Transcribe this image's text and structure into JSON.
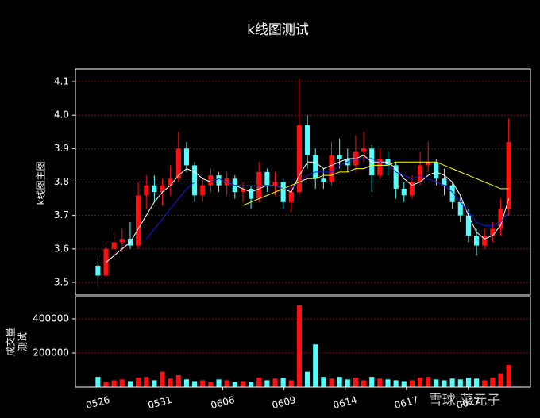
{
  "chart_data": [
    {
      "type": "candlestick",
      "title": "k线图测试",
      "ylabel": "k线图主图",
      "x": [
        0,
        1,
        2,
        3,
        4,
        5,
        6,
        7,
        8,
        9,
        10,
        11,
        12,
        13,
        14,
        15,
        16,
        17,
        18,
        19,
        20,
        21,
        22,
        23,
        24,
        25,
        26,
        27,
        28,
        29,
        30,
        31,
        32,
        33,
        34,
        35,
        36,
        37,
        38,
        39,
        40,
        41,
        42,
        43,
        44,
        45,
        46,
        47,
        48,
        49,
        50,
        51
      ],
      "open": [
        3.55,
        3.52,
        3.6,
        3.62,
        3.63,
        3.61,
        3.76,
        3.79,
        3.77,
        3.79,
        3.81,
        3.9,
        3.85,
        3.76,
        3.79,
        3.82,
        3.79,
        3.81,
        3.77,
        3.78,
        3.75,
        3.83,
        3.79,
        3.8,
        3.74,
        3.77,
        3.97,
        3.88,
        3.81,
        3.8,
        3.88,
        3.87,
        3.85,
        3.89,
        3.9,
        3.82,
        3.87,
        3.85,
        3.78,
        3.76,
        3.8,
        3.85,
        3.86,
        3.81,
        3.79,
        3.74,
        3.7,
        3.64,
        3.61,
        3.64,
        3.66,
        3.72
      ],
      "high": [
        3.58,
        3.62,
        3.65,
        3.66,
        3.68,
        3.8,
        3.82,
        3.82,
        3.81,
        3.85,
        3.95,
        3.92,
        3.86,
        3.81,
        3.84,
        3.83,
        3.83,
        3.82,
        3.8,
        3.79,
        3.86,
        3.84,
        3.83,
        3.81,
        3.79,
        4.11,
        4.0,
        3.9,
        3.84,
        3.92,
        3.93,
        3.9,
        3.94,
        3.95,
        3.91,
        3.9,
        3.89,
        3.86,
        3.8,
        3.82,
        3.89,
        3.92,
        3.87,
        3.84,
        3.8,
        3.76,
        3.72,
        3.66,
        3.66,
        3.68,
        3.75,
        3.99
      ],
      "low": [
        3.49,
        3.51,
        3.58,
        3.59,
        3.6,
        3.6,
        3.72,
        3.74,
        3.73,
        3.76,
        3.8,
        3.83,
        3.74,
        3.74,
        3.77,
        3.77,
        3.76,
        3.75,
        3.74,
        3.72,
        3.74,
        3.77,
        3.76,
        3.72,
        3.71,
        3.76,
        3.84,
        3.78,
        3.78,
        3.79,
        3.84,
        3.83,
        3.83,
        3.86,
        3.77,
        3.81,
        3.82,
        3.75,
        3.74,
        3.75,
        3.79,
        3.83,
        3.79,
        3.76,
        3.72,
        3.68,
        3.62,
        3.58,
        3.6,
        3.62,
        3.64,
        3.7
      ],
      "close": [
        3.52,
        3.6,
        3.62,
        3.63,
        3.61,
        3.76,
        3.79,
        3.77,
        3.79,
        3.81,
        3.9,
        3.85,
        3.76,
        3.79,
        3.82,
        3.79,
        3.81,
        3.77,
        3.78,
        3.75,
        3.83,
        3.79,
        3.8,
        3.74,
        3.77,
        3.97,
        3.88,
        3.81,
        3.8,
        3.88,
        3.87,
        3.85,
        3.89,
        3.9,
        3.82,
        3.87,
        3.85,
        3.78,
        3.76,
        3.8,
        3.85,
        3.86,
        3.81,
        3.79,
        3.74,
        3.7,
        3.64,
        3.61,
        3.64,
        3.66,
        3.72,
        3.92
      ],
      "up_color": "#ff1010",
      "down_color": "#54fcfc",
      "series": [
        {
          "color": "#ffffff",
          "values": [
            null,
            3.56,
            3.58,
            3.6,
            3.62,
            3.66,
            3.7,
            3.74,
            3.77,
            3.79,
            3.82,
            3.84,
            3.83,
            3.81,
            3.8,
            3.8,
            3.8,
            3.79,
            3.78,
            3.77,
            3.78,
            3.79,
            3.79,
            3.78,
            3.77,
            3.82,
            3.86,
            3.86,
            3.84,
            3.85,
            3.86,
            3.87,
            3.87,
            3.88,
            3.86,
            3.86,
            3.86,
            3.84,
            3.81,
            3.79,
            3.8,
            3.82,
            3.83,
            3.82,
            3.8,
            3.76,
            3.7,
            3.65,
            3.63,
            3.64,
            3.67,
            3.75
          ]
        },
        {
          "color": "#1818e0",
          "values": [
            null,
            null,
            null,
            null,
            null,
            null,
            3.63,
            3.66,
            3.69,
            3.72,
            3.75,
            3.78,
            3.8,
            3.8,
            3.8,
            3.81,
            3.8,
            3.79,
            3.79,
            3.79,
            3.79,
            3.79,
            3.79,
            3.78,
            3.78,
            3.8,
            3.82,
            3.83,
            3.83,
            3.83,
            3.85,
            3.86,
            3.87,
            3.87,
            3.87,
            3.86,
            3.85,
            3.83,
            3.82,
            3.81,
            3.82,
            3.81,
            3.8,
            3.79,
            3.77,
            3.74,
            3.71,
            3.68,
            3.67,
            3.67,
            3.68,
            3.71
          ]
        },
        {
          "color": "#ffff00",
          "values": [
            null,
            null,
            null,
            null,
            null,
            null,
            null,
            null,
            null,
            null,
            null,
            null,
            null,
            null,
            null,
            null,
            null,
            null,
            3.73,
            3.74,
            3.75,
            3.76,
            3.77,
            3.78,
            3.79,
            3.8,
            3.81,
            3.81,
            3.82,
            3.82,
            3.83,
            3.83,
            3.84,
            3.84,
            3.85,
            3.85,
            3.85,
            3.86,
            3.86,
            3.86,
            3.86,
            3.86,
            3.86,
            3.85,
            3.84,
            3.83,
            3.82,
            3.81,
            3.8,
            3.79,
            3.78,
            3.78
          ]
        }
      ],
      "xlim": [
        -2.8,
        53.7
      ],
      "ylim": [
        3.462,
        4.138
      ],
      "yticks": [
        3.5,
        3.6,
        3.7,
        3.8,
        3.9,
        {
          "value": 4.0,
          "label": "4.0"
        },
        4.1
      ],
      "grid": true,
      "grid_color": "#c80000"
    },
    {
      "type": "bar",
      "ylabel": [
        "成交量",
        "测试"
      ],
      "values": [
        60000,
        30000,
        40000,
        45000,
        35000,
        55000,
        60000,
        40000,
        90000,
        50000,
        70000,
        45000,
        35000,
        40000,
        30000,
        45000,
        40000,
        30000,
        35000,
        30000,
        55000,
        40000,
        50000,
        55000,
        40000,
        480000,
        90000,
        250000,
        60000,
        50000,
        60000,
        45000,
        55000,
        40000,
        60000,
        50000,
        45000,
        40000,
        35000,
        40000,
        55000,
        60000,
        45000,
        40000,
        50000,
        45000,
        55000,
        50000,
        40000,
        55000,
        80000,
        130000
      ],
      "ylim": [
        0,
        530000
      ],
      "yticks": [
        200000,
        400000
      ],
      "xticks": [
        {
          "value": 0,
          "label": "0526"
        },
        {
          "value": 7.7,
          "label": "0531"
        },
        {
          "value": 15.5,
          "label": "0606"
        },
        {
          "value": 23.1,
          "label": "0609"
        },
        {
          "value": 30.7,
          "label": "0614"
        },
        {
          "value": 38.3,
          "label": "0617"
        },
        {
          "value": 46,
          "label": "0622"
        }
      ],
      "grid": true
    }
  ],
  "watermark": "雪球 菜元子"
}
